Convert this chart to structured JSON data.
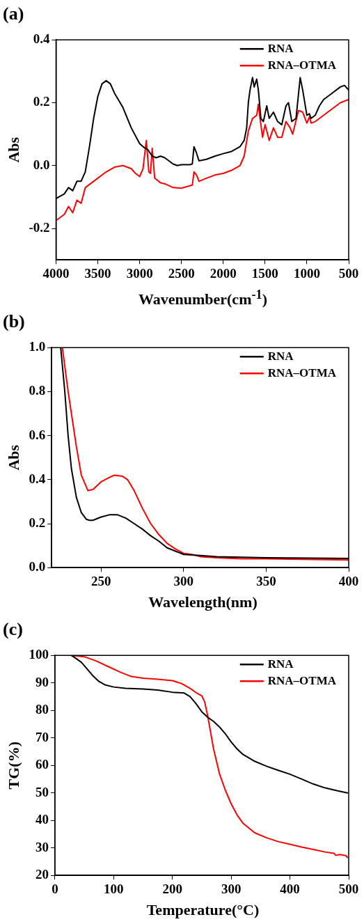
{
  "chart_data": [
    {
      "type": "line",
      "title": "(a)",
      "xlabel": "Wavenumber(cm$^{-1}$)",
      "ylabel": "Abs",
      "xlim": [
        4000,
        500
      ],
      "xticks": [
        4000,
        3500,
        3000,
        2500,
        2000,
        1500,
        1000,
        500
      ],
      "ylim": [
        -0.3,
        0.4
      ],
      "yticks": [
        {
          "value": -0.2,
          "label": "-0.2"
        },
        {
          "value": 0,
          "label": "0.0"
        },
        {
          "value": 0.2,
          "label": "0.2"
        },
        {
          "value": 0.4,
          "label": "0.4"
        }
      ],
      "grid": false,
      "legend": "top right",
      "marker": "none",
      "line_style": "solid",
      "series": [
        {
          "name": "RNA",
          "color": "#000000",
          "x": [
            4000,
            3900,
            3850,
            3800,
            3750,
            3700,
            3650,
            3600,
            3550,
            3500,
            3450,
            3400,
            3350,
            3300,
            3200,
            3100,
            3000,
            2950,
            2900,
            2850,
            2800,
            2750,
            2700,
            2600,
            2550,
            2500,
            2400,
            2370,
            2350,
            2320,
            2290,
            2200,
            2100,
            2000,
            1900,
            1800,
            1750,
            1720,
            1700,
            1680,
            1650,
            1630,
            1600,
            1580,
            1550,
            1520,
            1480,
            1450,
            1400,
            1350,
            1300,
            1250,
            1220,
            1180,
            1130,
            1080,
            1050,
            1000,
            970,
            950,
            900,
            850,
            800,
            700,
            600,
            550,
            500
          ],
          "values": [
            -0.105,
            -0.09,
            -0.07,
            -0.08,
            -0.05,
            -0.05,
            -0.02,
            0.06,
            0.15,
            0.22,
            0.26,
            0.27,
            0.26,
            0.23,
            0.185,
            0.12,
            0.07,
            0.058,
            0.05,
            0.03,
            0.025,
            0.03,
            0.025,
            0.005,
            0.0,
            0.003,
            0.003,
            0.005,
            0.06,
            0.04,
            0.015,
            0.02,
            0.03,
            0.038,
            0.045,
            0.06,
            0.08,
            0.12,
            0.2,
            0.24,
            0.28,
            0.25,
            0.275,
            0.24,
            0.15,
            0.14,
            0.19,
            0.15,
            0.17,
            0.14,
            0.13,
            0.19,
            0.2,
            0.14,
            0.15,
            0.28,
            0.24,
            0.16,
            0.165,
            0.15,
            0.16,
            0.19,
            0.21,
            0.23,
            0.25,
            0.255,
            0.24
          ]
        },
        {
          "name": "RNA–OTMA",
          "color": "#ff0000",
          "x": [
            4000,
            3900,
            3850,
            3800,
            3750,
            3700,
            3650,
            3600,
            3500,
            3400,
            3300,
            3200,
            3100,
            3050,
            3000,
            2960,
            2920,
            2890,
            2870,
            2850,
            2820,
            2750,
            2700,
            2600,
            2500,
            2370,
            2350,
            2320,
            2290,
            2200,
            2100,
            2000,
            1900,
            1800,
            1750,
            1700,
            1650,
            1600,
            1580,
            1560,
            1530,
            1500,
            1450,
            1400,
            1350,
            1300,
            1250,
            1200,
            1170,
            1100,
            1050,
            1000,
            970,
            950,
            900,
            800,
            700,
            600,
            500
          ],
          "values": [
            -0.175,
            -0.155,
            -0.13,
            -0.15,
            -0.11,
            -0.12,
            -0.07,
            -0.06,
            -0.04,
            -0.02,
            -0.005,
            0.0,
            -0.01,
            -0.025,
            -0.035,
            -0.01,
            0.08,
            -0.02,
            -0.025,
            0.055,
            -0.04,
            -0.055,
            -0.058,
            -0.07,
            -0.072,
            -0.062,
            -0.02,
            -0.03,
            -0.05,
            -0.04,
            -0.03,
            -0.025,
            -0.015,
            0.0,
            0.03,
            0.11,
            0.15,
            0.16,
            0.195,
            0.15,
            0.09,
            0.13,
            0.08,
            0.12,
            0.09,
            0.09,
            0.14,
            0.12,
            0.1,
            0.175,
            0.17,
            0.135,
            0.155,
            0.135,
            0.14,
            0.16,
            0.18,
            0.2,
            0.21
          ]
        }
      ]
    },
    {
      "type": "line",
      "title": "(b)",
      "xlabel": "Wavelength(nm)",
      "ylabel": "Abs",
      "xlim": [
        220,
        400
      ],
      "xticks": [
        250,
        300,
        350,
        400
      ],
      "ylim": [
        0,
        1
      ],
      "yticks": [
        {
          "value": 0,
          "label": "0.0"
        },
        {
          "value": 0.2,
          "label": "0.2"
        },
        {
          "value": 0.4,
          "label": "0.4"
        },
        {
          "value": 0.6,
          "label": "0.6"
        },
        {
          "value": 0.8,
          "label": "0.8"
        },
        {
          "value": 1,
          "label": "1.0"
        }
      ],
      "grid": false,
      "legend": "top right",
      "marker": "none",
      "line_style": "solid",
      "series": [
        {
          "name": "RNA",
          "color": "#000000",
          "x": [
            225.5,
            228,
            230,
            232,
            235,
            238,
            241,
            243,
            245,
            250,
            255,
            260,
            265,
            270,
            275,
            280,
            285,
            290,
            295,
            300,
            310,
            320,
            350,
            400
          ],
          "values": [
            1.0,
            0.8,
            0.6,
            0.45,
            0.32,
            0.25,
            0.22,
            0.215,
            0.215,
            0.23,
            0.24,
            0.24,
            0.225,
            0.2,
            0.175,
            0.145,
            0.12,
            0.09,
            0.075,
            0.06,
            0.055,
            0.05,
            0.045,
            0.042
          ]
        },
        {
          "name": "RNA–OTMA",
          "color": "#ff0000",
          "x": [
            226.5,
            230,
            232,
            235,
            238,
            242,
            245,
            250,
            255,
            258,
            263,
            266,
            270,
            275,
            280,
            285,
            290,
            295,
            300,
            305,
            310,
            320,
            335,
            350,
            400
          ],
          "values": [
            1.0,
            0.8,
            0.7,
            0.55,
            0.42,
            0.35,
            0.355,
            0.39,
            0.41,
            0.42,
            0.415,
            0.4,
            0.35,
            0.27,
            0.2,
            0.15,
            0.11,
            0.085,
            0.065,
            0.06,
            0.05,
            0.045,
            0.04,
            0.04,
            0.035
          ]
        }
      ]
    },
    {
      "type": "line",
      "title": "(c)",
      "xlabel": "Temperature(°C)",
      "ylabel": "TG(%)",
      "xlim": [
        0,
        500
      ],
      "xticks": [
        0,
        100,
        200,
        300,
        400,
        500
      ],
      "ylim": [
        20,
        100
      ],
      "yticks": [
        20,
        30,
        40,
        50,
        60,
        70,
        80,
        90,
        100
      ],
      "grid": false,
      "legend": "top right",
      "marker": "none",
      "line_style": "solid",
      "series": [
        {
          "name": "RNA",
          "color": "#000000",
          "x": [
            28,
            35,
            45,
            55,
            65,
            75,
            85,
            100,
            120,
            150,
            175,
            200,
            220,
            230,
            240,
            250,
            260,
            270,
            280,
            290,
            300,
            310,
            320,
            340,
            360,
            380,
            400,
            420,
            440,
            460,
            480,
            498
          ],
          "values": [
            100,
            99,
            97.5,
            95,
            92.5,
            90.5,
            89.3,
            88.5,
            88,
            87.8,
            87.4,
            86.6,
            86.3,
            85,
            82.5,
            79.5,
            77.5,
            76,
            74,
            71.5,
            68.5,
            66,
            64,
            61.5,
            59.7,
            58.2,
            56.8,
            55,
            53.2,
            51.8,
            50.8,
            50
          ]
        },
        {
          "name": "RNA–OTMA",
          "color": "#ff0000",
          "x": [
            28,
            50,
            70,
            90,
            110,
            130,
            150,
            175,
            200,
            215,
            230,
            240,
            250,
            255,
            260,
            265,
            270,
            280,
            290,
            300,
            310,
            320,
            340,
            360,
            380,
            400,
            420,
            440,
            460,
            475,
            478,
            485,
            495,
            498
          ],
          "values": [
            100,
            99.5,
            98,
            96,
            94,
            92.3,
            91.7,
            91.3,
            90.8,
            89.8,
            88,
            86.5,
            85.3,
            83,
            78,
            72,
            66,
            57,
            51,
            46,
            42,
            39,
            35.5,
            33.7,
            32.3,
            31.3,
            30.3,
            29.4,
            28.5,
            28,
            27.3,
            27.6,
            27.2,
            26.5
          ]
        }
      ]
    }
  ]
}
